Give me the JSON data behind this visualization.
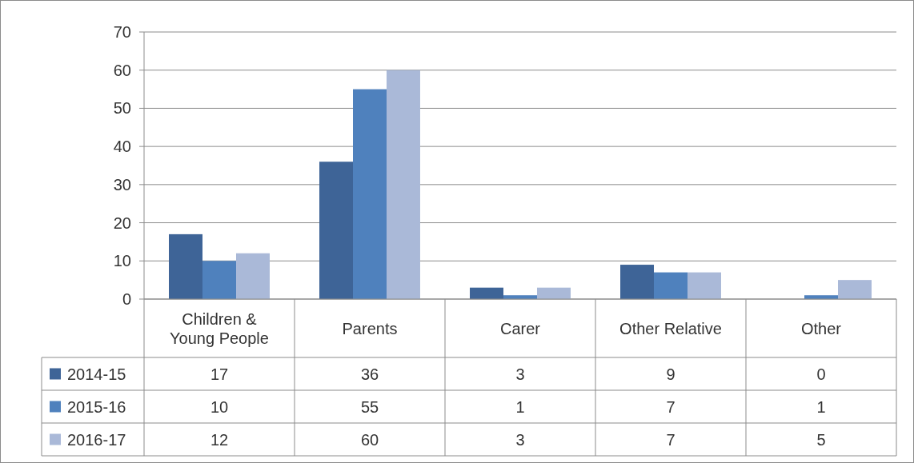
{
  "chart_data": {
    "type": "bar",
    "categories": [
      "Children & Young People",
      "Parents",
      "Carer",
      "Other Relative",
      "Other"
    ],
    "series": [
      {
        "name": "2014-15",
        "color": "#3e6497",
        "values": [
          17,
          36,
          3,
          9,
          0
        ]
      },
      {
        "name": "2015-16",
        "color": "#4f81bd",
        "values": [
          10,
          55,
          1,
          7,
          1
        ]
      },
      {
        "name": "2016-17",
        "color": "#aab9d8",
        "values": [
          12,
          60,
          3,
          7,
          5
        ]
      }
    ],
    "ylim": [
      0,
      70
    ],
    "yticks": [
      0,
      10,
      20,
      30,
      40,
      50,
      60,
      70
    ],
    "grid": "y",
    "legend": "bottom",
    "data_labels": true
  }
}
